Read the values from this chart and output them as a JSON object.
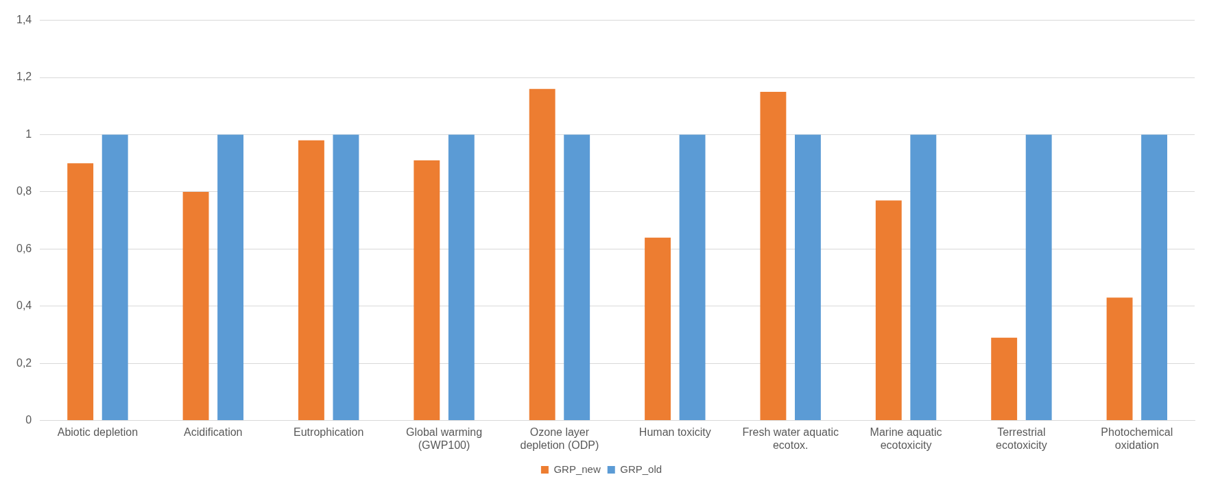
{
  "chart_data": {
    "type": "bar",
    "categories": [
      "Abiotic depletion",
      "Acidification",
      "Eutrophication",
      "Global warming (GWP100)",
      "Ozone layer depletion (ODP)",
      "Human toxicity",
      "Fresh water aquatic ecotox.",
      "Marine aquatic ecotoxicity",
      "Terrestrial ecotoxicity",
      "Photochemical oxidation"
    ],
    "series": [
      {
        "name": "GRP_new",
        "color": "#ed7d31",
        "values": [
          0.9,
          0.8,
          0.98,
          0.91,
          1.16,
          0.64,
          1.15,
          0.77,
          0.29,
          0.43
        ]
      },
      {
        "name": "GRP_old",
        "color": "#5b9bd5",
        "values": [
          1,
          1,
          1,
          1,
          1,
          1,
          1,
          1,
          1,
          1
        ]
      }
    ],
    "ylim": [
      0,
      1.4
    ],
    "yticks": [
      0,
      {
        "value": 0.2,
        "label": "0,2"
      },
      {
        "value": 0.4,
        "label": "0,4"
      },
      {
        "value": 0.6,
        "label": "0,6"
      },
      {
        "value": 0.8,
        "label": "0,8"
      },
      1,
      {
        "value": 1.2,
        "label": "1,2"
      },
      {
        "value": 1.4,
        "label": "1,4"
      }
    ],
    "grid": "y",
    "legend": "bottom"
  }
}
